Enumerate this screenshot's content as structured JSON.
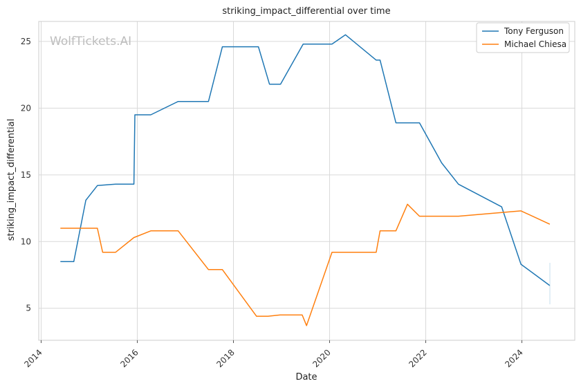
{
  "chart_data": {
    "type": "line",
    "title": "striking_impact_differential over time",
    "xlabel": "Date",
    "ylabel": "striking_impact_differential",
    "watermark": "WolfTickets.AI",
    "xlim": [
      2013.95,
      2025.1
    ],
    "ylim": [
      2.6,
      26.5
    ],
    "x_ticks": [
      2014,
      2016,
      2018,
      2020,
      2022,
      2024
    ],
    "y_ticks": [
      5,
      10,
      15,
      20,
      25
    ],
    "grid": true,
    "legend_position": "top-right",
    "colors": {
      "series_1": "#1f77b4",
      "series_2": "#ff7f0e",
      "grid": "#d9d9d9",
      "spine": "#cccccc"
    },
    "series": [
      {
        "name": "Tony Ferguson",
        "color": "#1f77b4",
        "points": [
          [
            2014.4,
            8.5
          ],
          [
            2014.68,
            8.5
          ],
          [
            2014.93,
            13.1
          ],
          [
            2015.17,
            14.2
          ],
          [
            2015.55,
            14.3
          ],
          [
            2015.93,
            14.3
          ],
          [
            2015.95,
            19.5
          ],
          [
            2016.28,
            19.5
          ],
          [
            2016.85,
            20.5
          ],
          [
            2017.48,
            20.5
          ],
          [
            2017.77,
            24.6
          ],
          [
            2018.52,
            24.6
          ],
          [
            2018.75,
            21.8
          ],
          [
            2018.98,
            21.8
          ],
          [
            2019.45,
            24.8
          ],
          [
            2020.05,
            24.8
          ],
          [
            2020.33,
            25.5
          ],
          [
            2020.97,
            23.6
          ],
          [
            2021.05,
            23.6
          ],
          [
            2021.38,
            18.9
          ],
          [
            2021.87,
            18.9
          ],
          [
            2022.33,
            15.9
          ],
          [
            2022.68,
            14.3
          ],
          [
            2023.58,
            12.6
          ],
          [
            2023.98,
            8.3
          ],
          [
            2024.58,
            6.7
          ]
        ]
      },
      {
        "name": "Michael Chiesa",
        "color": "#ff7f0e",
        "points": [
          [
            2014.4,
            11.0
          ],
          [
            2015.17,
            11.0
          ],
          [
            2015.28,
            9.2
          ],
          [
            2015.55,
            9.2
          ],
          [
            2015.93,
            10.3
          ],
          [
            2016.28,
            10.8
          ],
          [
            2016.85,
            10.8
          ],
          [
            2017.48,
            7.9
          ],
          [
            2017.77,
            7.9
          ],
          [
            2018.48,
            4.4
          ],
          [
            2018.72,
            4.4
          ],
          [
            2018.97,
            4.5
          ],
          [
            2019.43,
            4.5
          ],
          [
            2019.52,
            3.7
          ],
          [
            2020.05,
            9.2
          ],
          [
            2020.97,
            9.2
          ],
          [
            2021.05,
            10.8
          ],
          [
            2021.38,
            10.8
          ],
          [
            2021.62,
            12.8
          ],
          [
            2021.87,
            11.9
          ],
          [
            2022.68,
            11.9
          ],
          [
            2023.98,
            12.3
          ],
          [
            2024.58,
            11.3
          ]
        ]
      }
    ]
  }
}
